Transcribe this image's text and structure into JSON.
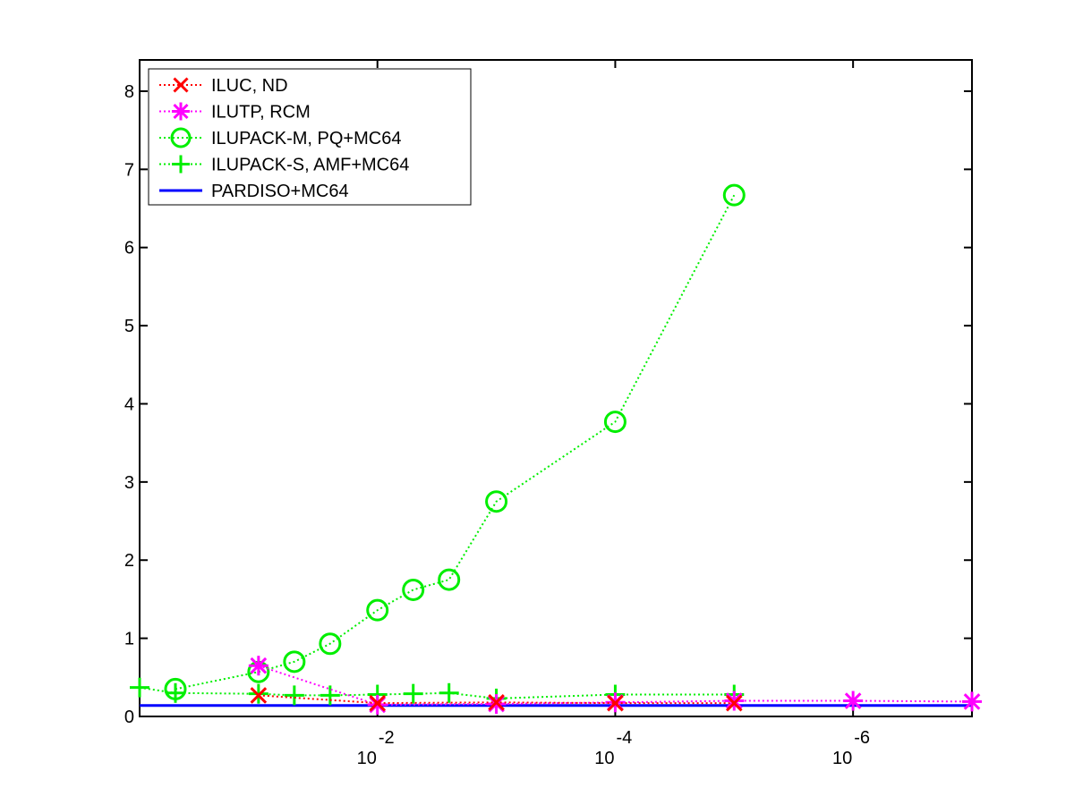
{
  "chart_data": {
    "type": "line",
    "title": "",
    "xlabel": "",
    "ylabel": "",
    "x_scale": "log-reversed",
    "xlim": [
      1.0,
      1e-07
    ],
    "ylim": [
      0,
      8.4
    ],
    "grid": false,
    "legend_position": "top-left",
    "x_ticks": [
      {
        "value": 0.01,
        "base": "10",
        "exp": "-2"
      },
      {
        "value": 0.0001,
        "base": "10",
        "exp": "-4"
      },
      {
        "value": 1e-06,
        "base": "10",
        "exp": "-6"
      }
    ],
    "y_ticks": [
      0,
      1,
      2,
      3,
      4,
      5,
      6,
      7,
      8
    ],
    "series": [
      {
        "name": "ILUC,  ND",
        "color": "#ff0000",
        "marker": "x",
        "line": "dotted",
        "x": [
          0.1,
          0.01,
          0.001,
          0.0001,
          1e-05
        ],
        "y": [
          0.27,
          0.17,
          0.18,
          0.17,
          0.17
        ]
      },
      {
        "name": "ILUTP, RCM",
        "color": "#ff00ff",
        "marker": "star",
        "line": "dotted",
        "x": [
          0.1,
          0.01,
          0.001,
          0.0001,
          1e-05,
          1e-06,
          1e-07
        ],
        "y": [
          0.65,
          0.15,
          0.16,
          0.18,
          0.2,
          0.2,
          0.19
        ]
      },
      {
        "name": "ILUPACK-M, PQ+MC64",
        "color": "#00ee00",
        "marker": "circle",
        "line": "dotted",
        "x": [
          0.5,
          0.1,
          0.05,
          0.025,
          0.01,
          0.005,
          0.0025,
          0.001,
          0.0001,
          1e-05
        ],
        "y": [
          0.35,
          0.57,
          0.7,
          0.93,
          1.36,
          1.62,
          1.75,
          2.75,
          3.77,
          6.67
        ]
      },
      {
        "name": "ILUPACK-S, AMF+MC64",
        "color": "#00ee00",
        "marker": "plus",
        "line": "dotted",
        "x": [
          1.0,
          0.5,
          0.1,
          0.05,
          0.025,
          0.01,
          0.005,
          0.0025,
          0.001,
          0.0001,
          1e-05
        ],
        "y": [
          0.37,
          0.3,
          0.29,
          0.27,
          0.27,
          0.28,
          0.29,
          0.3,
          0.23,
          0.28,
          0.28
        ]
      },
      {
        "name": "PARDISO+MC64",
        "color": "#0000ff",
        "marker": "none",
        "line": "solid",
        "x": [
          1.0,
          1e-07
        ],
        "y": [
          0.14,
          0.14
        ]
      }
    ]
  }
}
